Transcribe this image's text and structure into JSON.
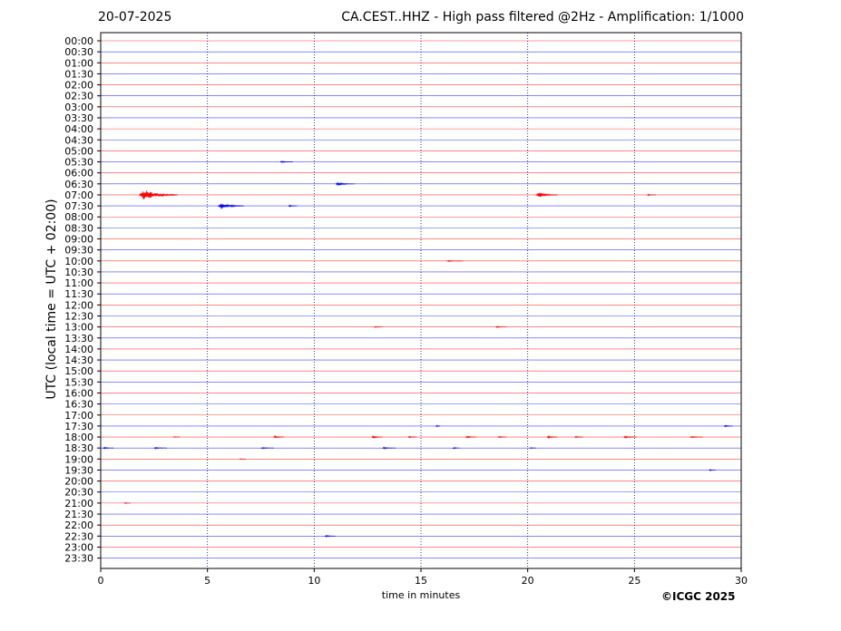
{
  "header": {
    "date": "20-07-2025",
    "title": "CA.CEST..HHZ - High pass filtered @2Hz - Amplification: 1/1000"
  },
  "footer": {
    "copyright": "©ICGC 2025"
  },
  "colors": {
    "odd": "#ff0000",
    "even": "#0000ff",
    "grid": "#00008b",
    "axis": "#000000"
  },
  "chart_data": {
    "type": "line",
    "title": "CA.CEST..HHZ - High pass filtered @2Hz - Amplification: 1/1000",
    "xlabel": "time in minutes",
    "ylabel": "UTC (local time = UTC + 02:00)",
    "xlim": [
      0,
      30
    ],
    "x_ticks": [
      0,
      5,
      10,
      15,
      20,
      25,
      30
    ],
    "vertical_gridlines": [
      5,
      10,
      15,
      20,
      25
    ],
    "y_ticks": [
      "00:00",
      "00:30",
      "01:00",
      "01:30",
      "02:00",
      "02:30",
      "03:00",
      "03:30",
      "04:00",
      "04:30",
      "05:00",
      "05:30",
      "06:00",
      "06:30",
      "07:00",
      "07:30",
      "08:00",
      "08:30",
      "09:00",
      "09:30",
      "10:00",
      "10:30",
      "11:00",
      "11:30",
      "12:00",
      "12:30",
      "13:00",
      "13:30",
      "14:00",
      "14:30",
      "15:00",
      "15:30",
      "16:00",
      "16:30",
      "17:00",
      "17:30",
      "18:00",
      "18:30",
      "19:00",
      "19:30",
      "20:00",
      "20:30",
      "21:00",
      "21:30",
      "22:00",
      "22:30",
      "23:00",
      "23:30"
    ],
    "series_colors": "alternating red (on the hour) / blue (on the half hour)",
    "events": [
      {
        "row": "05:30",
        "t": 8.4,
        "amp": 0.15,
        "dur": 0.6
      },
      {
        "row": "06:30",
        "t": 11.0,
        "amp": 0.3,
        "dur": 0.9
      },
      {
        "row": "07:00",
        "t": 1.8,
        "amp": 0.95,
        "dur": 1.8
      },
      {
        "row": "07:00",
        "t": 20.4,
        "amp": 0.5,
        "dur": 1.0
      },
      {
        "row": "07:00",
        "t": 25.6,
        "amp": 0.15,
        "dur": 0.4
      },
      {
        "row": "07:30",
        "t": 5.5,
        "amp": 0.55,
        "dur": 1.2
      },
      {
        "row": "07:30",
        "t": 8.8,
        "amp": 0.15,
        "dur": 0.4
      },
      {
        "row": "10:00",
        "t": 16.2,
        "amp": 0.1,
        "dur": 0.8
      },
      {
        "row": "13:00",
        "t": 12.8,
        "amp": 0.12,
        "dur": 0.4
      },
      {
        "row": "13:00",
        "t": 18.5,
        "amp": 0.12,
        "dur": 0.5
      },
      {
        "row": "17:30",
        "t": 15.7,
        "amp": 0.25,
        "dur": 0.2
      },
      {
        "row": "17:30",
        "t": 29.2,
        "amp": 0.15,
        "dur": 0.4
      },
      {
        "row": "18:00",
        "t": 3.4,
        "amp": 0.12,
        "dur": 0.3
      },
      {
        "row": "18:00",
        "t": 8.1,
        "amp": 0.2,
        "dur": 0.5
      },
      {
        "row": "18:00",
        "t": 12.7,
        "amp": 0.2,
        "dur": 0.5
      },
      {
        "row": "18:00",
        "t": 14.4,
        "amp": 0.15,
        "dur": 0.4
      },
      {
        "row": "18:00",
        "t": 17.1,
        "amp": 0.2,
        "dur": 0.5
      },
      {
        "row": "18:00",
        "t": 18.6,
        "amp": 0.15,
        "dur": 0.4
      },
      {
        "row": "18:00",
        "t": 20.9,
        "amp": 0.2,
        "dur": 0.5
      },
      {
        "row": "18:00",
        "t": 22.2,
        "amp": 0.15,
        "dur": 0.4
      },
      {
        "row": "18:00",
        "t": 24.5,
        "amp": 0.2,
        "dur": 0.6
      },
      {
        "row": "18:00",
        "t": 27.6,
        "amp": 0.15,
        "dur": 0.6
      },
      {
        "row": "18:30",
        "t": 0.1,
        "amp": 0.15,
        "dur": 0.5
      },
      {
        "row": "18:30",
        "t": 2.5,
        "amp": 0.15,
        "dur": 0.6
      },
      {
        "row": "18:30",
        "t": 7.5,
        "amp": 0.15,
        "dur": 0.6
      },
      {
        "row": "18:30",
        "t": 13.2,
        "amp": 0.15,
        "dur": 0.6
      },
      {
        "row": "18:30",
        "t": 16.5,
        "amp": 0.2,
        "dur": 0.3
      },
      {
        "row": "18:30",
        "t": 20.1,
        "amp": 0.12,
        "dur": 0.3
      },
      {
        "row": "19:00",
        "t": 6.5,
        "amp": 0.1,
        "dur": 0.3
      },
      {
        "row": "19:30",
        "t": 28.5,
        "amp": 0.15,
        "dur": 0.3
      },
      {
        "row": "21:00",
        "t": 1.1,
        "amp": 0.1,
        "dur": 0.3
      },
      {
        "row": "22:30",
        "t": 10.5,
        "amp": 0.15,
        "dur": 0.5
      }
    ]
  }
}
